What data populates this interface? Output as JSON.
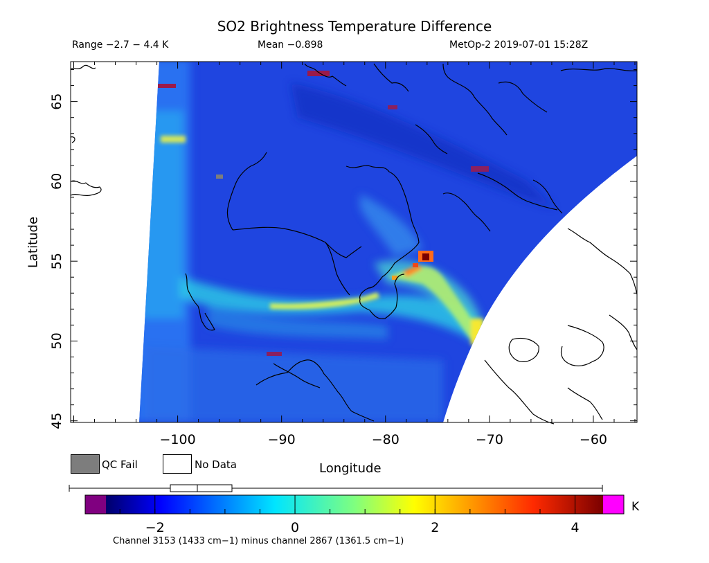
{
  "header": {
    "title": "SO2 Brightness Temperature Difference",
    "range": "Range −2.7 − 4.4 K",
    "mean": "Mean −0.898",
    "satellite_time": "MetOp-2 2019-07-01 15:28Z"
  },
  "axes": {
    "xlabel": "Longitude",
    "ylabel": "Latitude",
    "x_ticks": [
      "−100",
      "−90",
      "−80",
      "−70",
      "−60"
    ],
    "x_tick_values": [
      -100,
      -90,
      -80,
      -70,
      -60
    ],
    "y_ticks": [
      "45",
      "50",
      "55",
      "60",
      "65"
    ],
    "y_tick_values": [
      45,
      50,
      55,
      60,
      65
    ],
    "xlim": [
      -110.3,
      -55.8
    ],
    "ylim": [
      44.9,
      67.5
    ]
  },
  "legend": {
    "qc_fail": "QC Fail",
    "no_data": "No Data",
    "qc_fail_color": "#7d7d7d",
    "no_data_color": "#ffffff"
  },
  "colorbar": {
    "unit": "K",
    "ticks": [
      "−2",
      "0",
      "2",
      "4"
    ],
    "tick_values": [
      -2,
      0,
      2,
      4
    ],
    "range": [
      -2.7,
      4.4
    ],
    "boxplot": {
      "min": -2.7,
      "q1": -1.35,
      "median": -1.0,
      "q3": -0.55,
      "max": 4.4
    },
    "under_color": "#800080",
    "over_color": "#ff00ff",
    "footer": "Channel 3153 (1433 cm−1) minus channel 2867 (1361.5 cm−1)"
  },
  "chart_data": {
    "type": "heatmap",
    "title": "SO2 Brightness Temperature Difference",
    "xlabel": "Longitude",
    "ylabel": "Latitude",
    "xlim": [
      -110.3,
      -55.8
    ],
    "ylim": [
      44.9,
      67.5
    ],
    "value_range": [
      -2.7,
      4.4
    ],
    "mean": -0.898,
    "unit": "K",
    "colormap": "jet",
    "features": [
      {
        "lon": -76.0,
        "lat": 55.3,
        "value": 4.4
      },
      {
        "lon": -76.5,
        "lat": 55.0,
        "value": 3.6
      },
      {
        "lon": -78.5,
        "lat": 53.8,
        "value": 3.2
      },
      {
        "lon": -71.0,
        "lat": 50.8,
        "value": 2.1
      },
      {
        "lon": -87.5,
        "lat": 52.2,
        "value": 2.0
      },
      {
        "lon": -100.5,
        "lat": 62.5,
        "value": 2.0
      }
    ]
  }
}
